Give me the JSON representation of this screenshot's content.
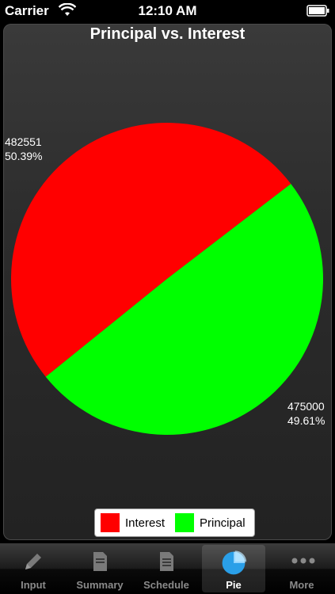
{
  "status_bar": {
    "carrier": "Carrier",
    "time": "12:10 AM"
  },
  "chart_data": {
    "type": "pie",
    "title": "Principal vs. Interest",
    "slices": [
      {
        "name": "Interest",
        "value": 482551,
        "percent_label": "50.39%",
        "color": "#ff0000"
      },
      {
        "name": "Principal",
        "value": 475000,
        "percent_label": "49.61%",
        "color": "#00ff00"
      }
    ],
    "legend_position": "bottom"
  },
  "labels": {
    "interest_value": "482551",
    "interest_pct": "50.39%",
    "principal_value": "475000",
    "principal_pct": "49.61%"
  },
  "legend": {
    "interest": "Interest",
    "principal": "Principal"
  },
  "tabs": [
    {
      "label": "Input",
      "icon": "pencil-icon"
    },
    {
      "label": "Summary",
      "icon": "document-icon"
    },
    {
      "label": "Schedule",
      "icon": "list-document-icon"
    },
    {
      "label": "Pie",
      "icon": "pie-chart-icon"
    },
    {
      "label": "More",
      "icon": "more-dots-icon"
    }
  ],
  "selected_tab": "Pie"
}
